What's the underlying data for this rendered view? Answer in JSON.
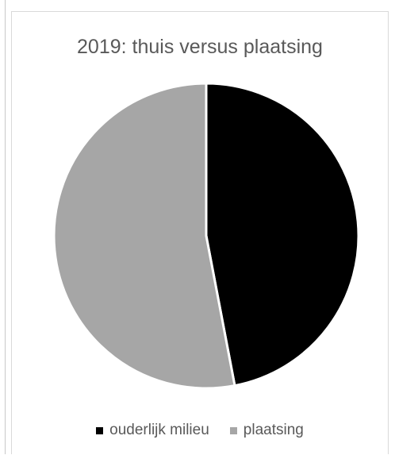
{
  "chart_data": {
    "type": "pie",
    "title": "2019: thuis versus plaatsing",
    "slices": [
      {
        "label": "ouderlijk milieu",
        "value": 47,
        "color": "#000000"
      },
      {
        "label": "plaatsing",
        "value": 53,
        "color": "#a6a6a6"
      }
    ],
    "start_angle_deg": 0,
    "direction": "clockwise",
    "legend_position": "bottom",
    "slice_border_color": "#ffffff"
  }
}
